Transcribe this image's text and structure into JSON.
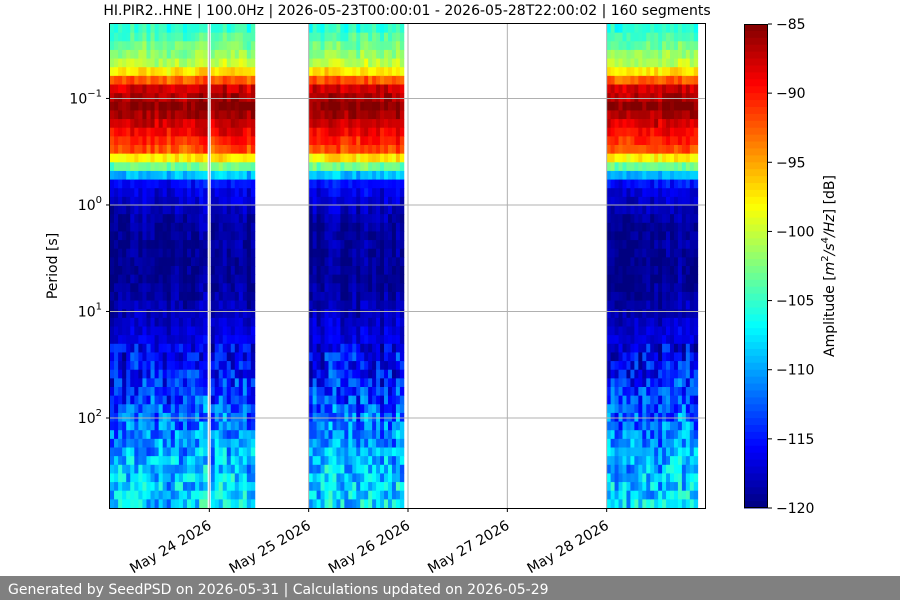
{
  "chart_data": {
    "type": "heatmap",
    "title": "HI.PIR2..HNE | 100.0Hz | 2026-05-23T00:00:01 - 2026-05-28T22:00:02 | 160 segments",
    "ylabel": "Period [s]",
    "colorbar_label": "Amplitude [m²/s⁴/Hz] [dB]",
    "colorbar_label_parts": {
      "prefix": "Amplitude [",
      "m": "m",
      "exp1": "2",
      "s": "/s",
      "exp2": "4",
      "hz": "/Hz",
      "suffix": "] [dB]"
    },
    "y_scale": "log",
    "y_inverted": true,
    "ylim_period_s": [
      0.02,
      700
    ],
    "y_ticks": [
      {
        "value": 0.1,
        "base": "10",
        "exp": "−1"
      },
      {
        "value": 1,
        "base": "10",
        "exp": "0"
      },
      {
        "value": 10,
        "base": "10",
        "exp": "1"
      },
      {
        "value": 100,
        "base": "10",
        "exp": "2"
      }
    ],
    "x_range_days": [
      "2026-05-23T00:00",
      "2026-05-29T00:00"
    ],
    "x_ticks": [
      "May 24 2026",
      "May 25 2026",
      "May 26 2026",
      "May 27 2026",
      "May 28 2026"
    ],
    "x_tick_dates": [
      "2026-05-24",
      "2026-05-25",
      "2026-05-26",
      "2026-05-27",
      "2026-05-28"
    ],
    "data_segments": [
      {
        "start": "2026-05-23T00:00",
        "end": "2026-05-23T23:30"
      },
      {
        "start": "2026-05-24T00:20",
        "end": "2026-05-24T11:00"
      },
      {
        "start": "2026-05-25T00:00",
        "end": "2026-05-25T23:00"
      },
      {
        "start": "2026-05-28T00:00",
        "end": "2026-05-28T22:00"
      }
    ],
    "colorbar": {
      "min": -120,
      "max": -85,
      "ticks": [
        "−85",
        "−90",
        "−95",
        "−100",
        "−105",
        "−110",
        "−115",
        "−120"
      ],
      "colormap": "jet"
    },
    "grid": true,
    "spectral_profile_db": [
      {
        "period": 0.02,
        "db": -106
      },
      {
        "period": 0.05,
        "db": -100
      },
      {
        "period": 0.08,
        "db": -88
      },
      {
        "period": 0.12,
        "db": -85
      },
      {
        "period": 0.3,
        "db": -92
      },
      {
        "period": 0.45,
        "db": -104
      },
      {
        "period": 0.65,
        "db": -116
      },
      {
        "period": 1.5,
        "db": -119
      },
      {
        "period": 5,
        "db": -119.5
      },
      {
        "period": 15,
        "db": -117
      },
      {
        "period": 40,
        "db": -115
      },
      {
        "period": 100,
        "db": -112
      },
      {
        "period": 300,
        "db": -109
      },
      {
        "period": 700,
        "db": -108
      }
    ]
  },
  "footer": {
    "text": "Generated by SeedPSD on 2026-05-31 | Calculations updated on 2026-05-29"
  }
}
